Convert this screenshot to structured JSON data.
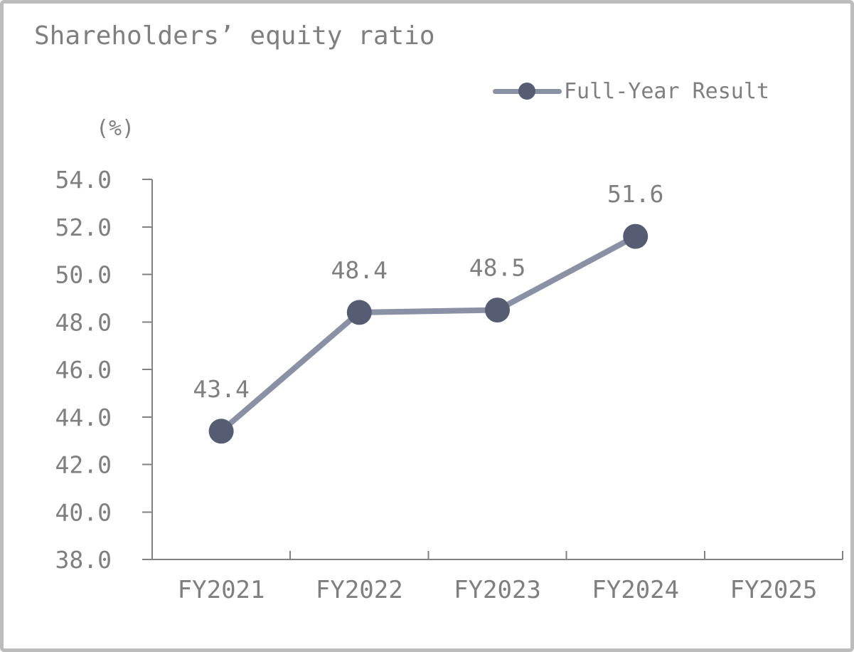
{
  "chart_data": {
    "type": "line",
    "title": "Shareholders’ equity ratio",
    "ylabel": "(%)",
    "categories": [
      "FY2021",
      "FY2022",
      "FY2023",
      "FY2024",
      "FY2025"
    ],
    "series": [
      {
        "name": "Full-Year Result",
        "values": [
          43.4,
          48.4,
          48.5,
          51.6,
          null
        ],
        "data_labels": [
          "43.4",
          "48.4",
          "48.5",
          "51.6",
          ""
        ]
      }
    ],
    "ylim": [
      38.0,
      54.0
    ],
    "ytick_step": 2.0,
    "ytick_labels": [
      "38.0",
      "40.0",
      "42.0",
      "44.0",
      "46.0",
      "48.0",
      "50.0",
      "52.0",
      "54.0"
    ],
    "grid": "off",
    "legend_position": "top-right",
    "colors": {
      "line": "#8a91a4",
      "marker": "#565d72",
      "label_text": "#7f7f7f",
      "axis": "#828282",
      "frame_border": "#bcbcbc",
      "background": "#ffffff"
    }
  }
}
